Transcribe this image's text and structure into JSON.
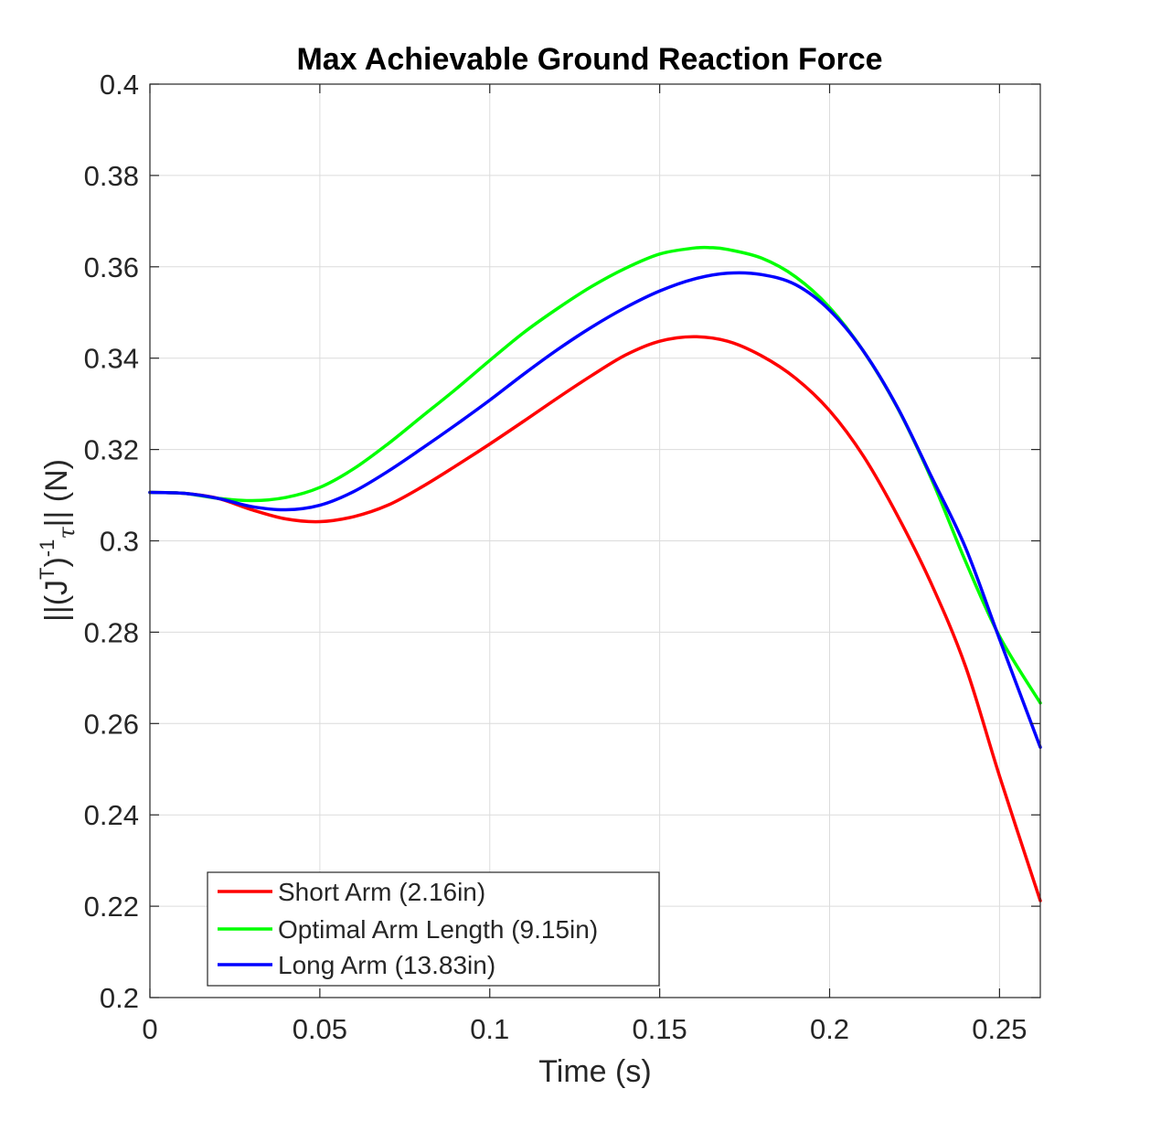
{
  "chart_data": {
    "type": "line",
    "title": "Max Achievable Ground Reaction Force",
    "xlabel": "Time (s)",
    "ylabel_parts": {
      "pre": "||(J",
      "sup1": "T",
      "mid": ")",
      "sup2": "-1",
      "sub": "τ",
      "post": "|| (N)"
    },
    "xlim": [
      0,
      0.262
    ],
    "ylim": [
      0.2,
      0.4
    ],
    "xticks": [
      0,
      0.05,
      0.1,
      0.15,
      0.2,
      0.25
    ],
    "xtick_labels": [
      "0",
      "0.05",
      "0.1",
      "0.15",
      "0.2",
      "0.25"
    ],
    "yticks": [
      0.2,
      0.22,
      0.24,
      0.26,
      0.28,
      0.3,
      0.32,
      0.34,
      0.36,
      0.38,
      0.4
    ],
    "ytick_labels": [
      "0.2",
      "0.22",
      "0.24",
      "0.26",
      "0.28",
      "0.3",
      "0.32",
      "0.34",
      "0.36",
      "0.38",
      "0.4"
    ],
    "grid": true,
    "legend_position": "bottom-left",
    "series": [
      {
        "name": "Short Arm (2.16in)",
        "color": "#ff0000",
        "x": [
          0,
          0.01,
          0.02,
          0.03,
          0.04,
          0.05,
          0.06,
          0.07,
          0.08,
          0.09,
          0.1,
          0.11,
          0.12,
          0.13,
          0.14,
          0.15,
          0.16,
          0.17,
          0.18,
          0.19,
          0.2,
          0.21,
          0.22,
          0.23,
          0.24,
          0.25,
          0.262
        ],
        "y": [
          0.3106,
          0.3104,
          0.3093,
          0.3068,
          0.3048,
          0.3042,
          0.3053,
          0.3078,
          0.3118,
          0.3164,
          0.3212,
          0.3262,
          0.3313,
          0.3362,
          0.3407,
          0.3437,
          0.3447,
          0.3437,
          0.3405,
          0.3356,
          0.3285,
          0.3185,
          0.3055,
          0.2905,
          0.2725,
          0.2485,
          0.2212
        ]
      },
      {
        "name": "Optimal Arm Length (9.15in)",
        "color": "#00ff00",
        "x": [
          0,
          0.01,
          0.02,
          0.03,
          0.04,
          0.05,
          0.06,
          0.07,
          0.08,
          0.09,
          0.1,
          0.11,
          0.12,
          0.13,
          0.14,
          0.15,
          0.16,
          0.165,
          0.17,
          0.18,
          0.19,
          0.2,
          0.21,
          0.22,
          0.23,
          0.24,
          0.25,
          0.262
        ],
        "y": [
          0.3106,
          0.3104,
          0.3093,
          0.3088,
          0.3095,
          0.3117,
          0.3158,
          0.3212,
          0.3272,
          0.3332,
          0.3395,
          0.3456,
          0.3509,
          0.3557,
          0.3597,
          0.3628,
          0.3641,
          0.3642,
          0.3638,
          0.3619,
          0.3578,
          0.3511,
          0.3415,
          0.3291,
          0.3135,
          0.2955,
          0.2791,
          0.2645
        ]
      },
      {
        "name": "Long Arm (13.83in)",
        "color": "#0000ff",
        "x": [
          0,
          0.01,
          0.02,
          0.03,
          0.04,
          0.05,
          0.06,
          0.07,
          0.08,
          0.09,
          0.1,
          0.11,
          0.12,
          0.13,
          0.14,
          0.15,
          0.16,
          0.17,
          0.18,
          0.19,
          0.2,
          0.21,
          0.22,
          0.23,
          0.24,
          0.25,
          0.262
        ],
        "y": [
          0.3106,
          0.3104,
          0.3093,
          0.3075,
          0.3068,
          0.3078,
          0.3108,
          0.3152,
          0.3202,
          0.3254,
          0.3308,
          0.3365,
          0.3419,
          0.3468,
          0.3511,
          0.3547,
          0.3573,
          0.3586,
          0.3583,
          0.3561,
          0.3505,
          0.3415,
          0.3292,
          0.314,
          0.2985,
          0.2785,
          0.2548
        ]
      }
    ]
  }
}
